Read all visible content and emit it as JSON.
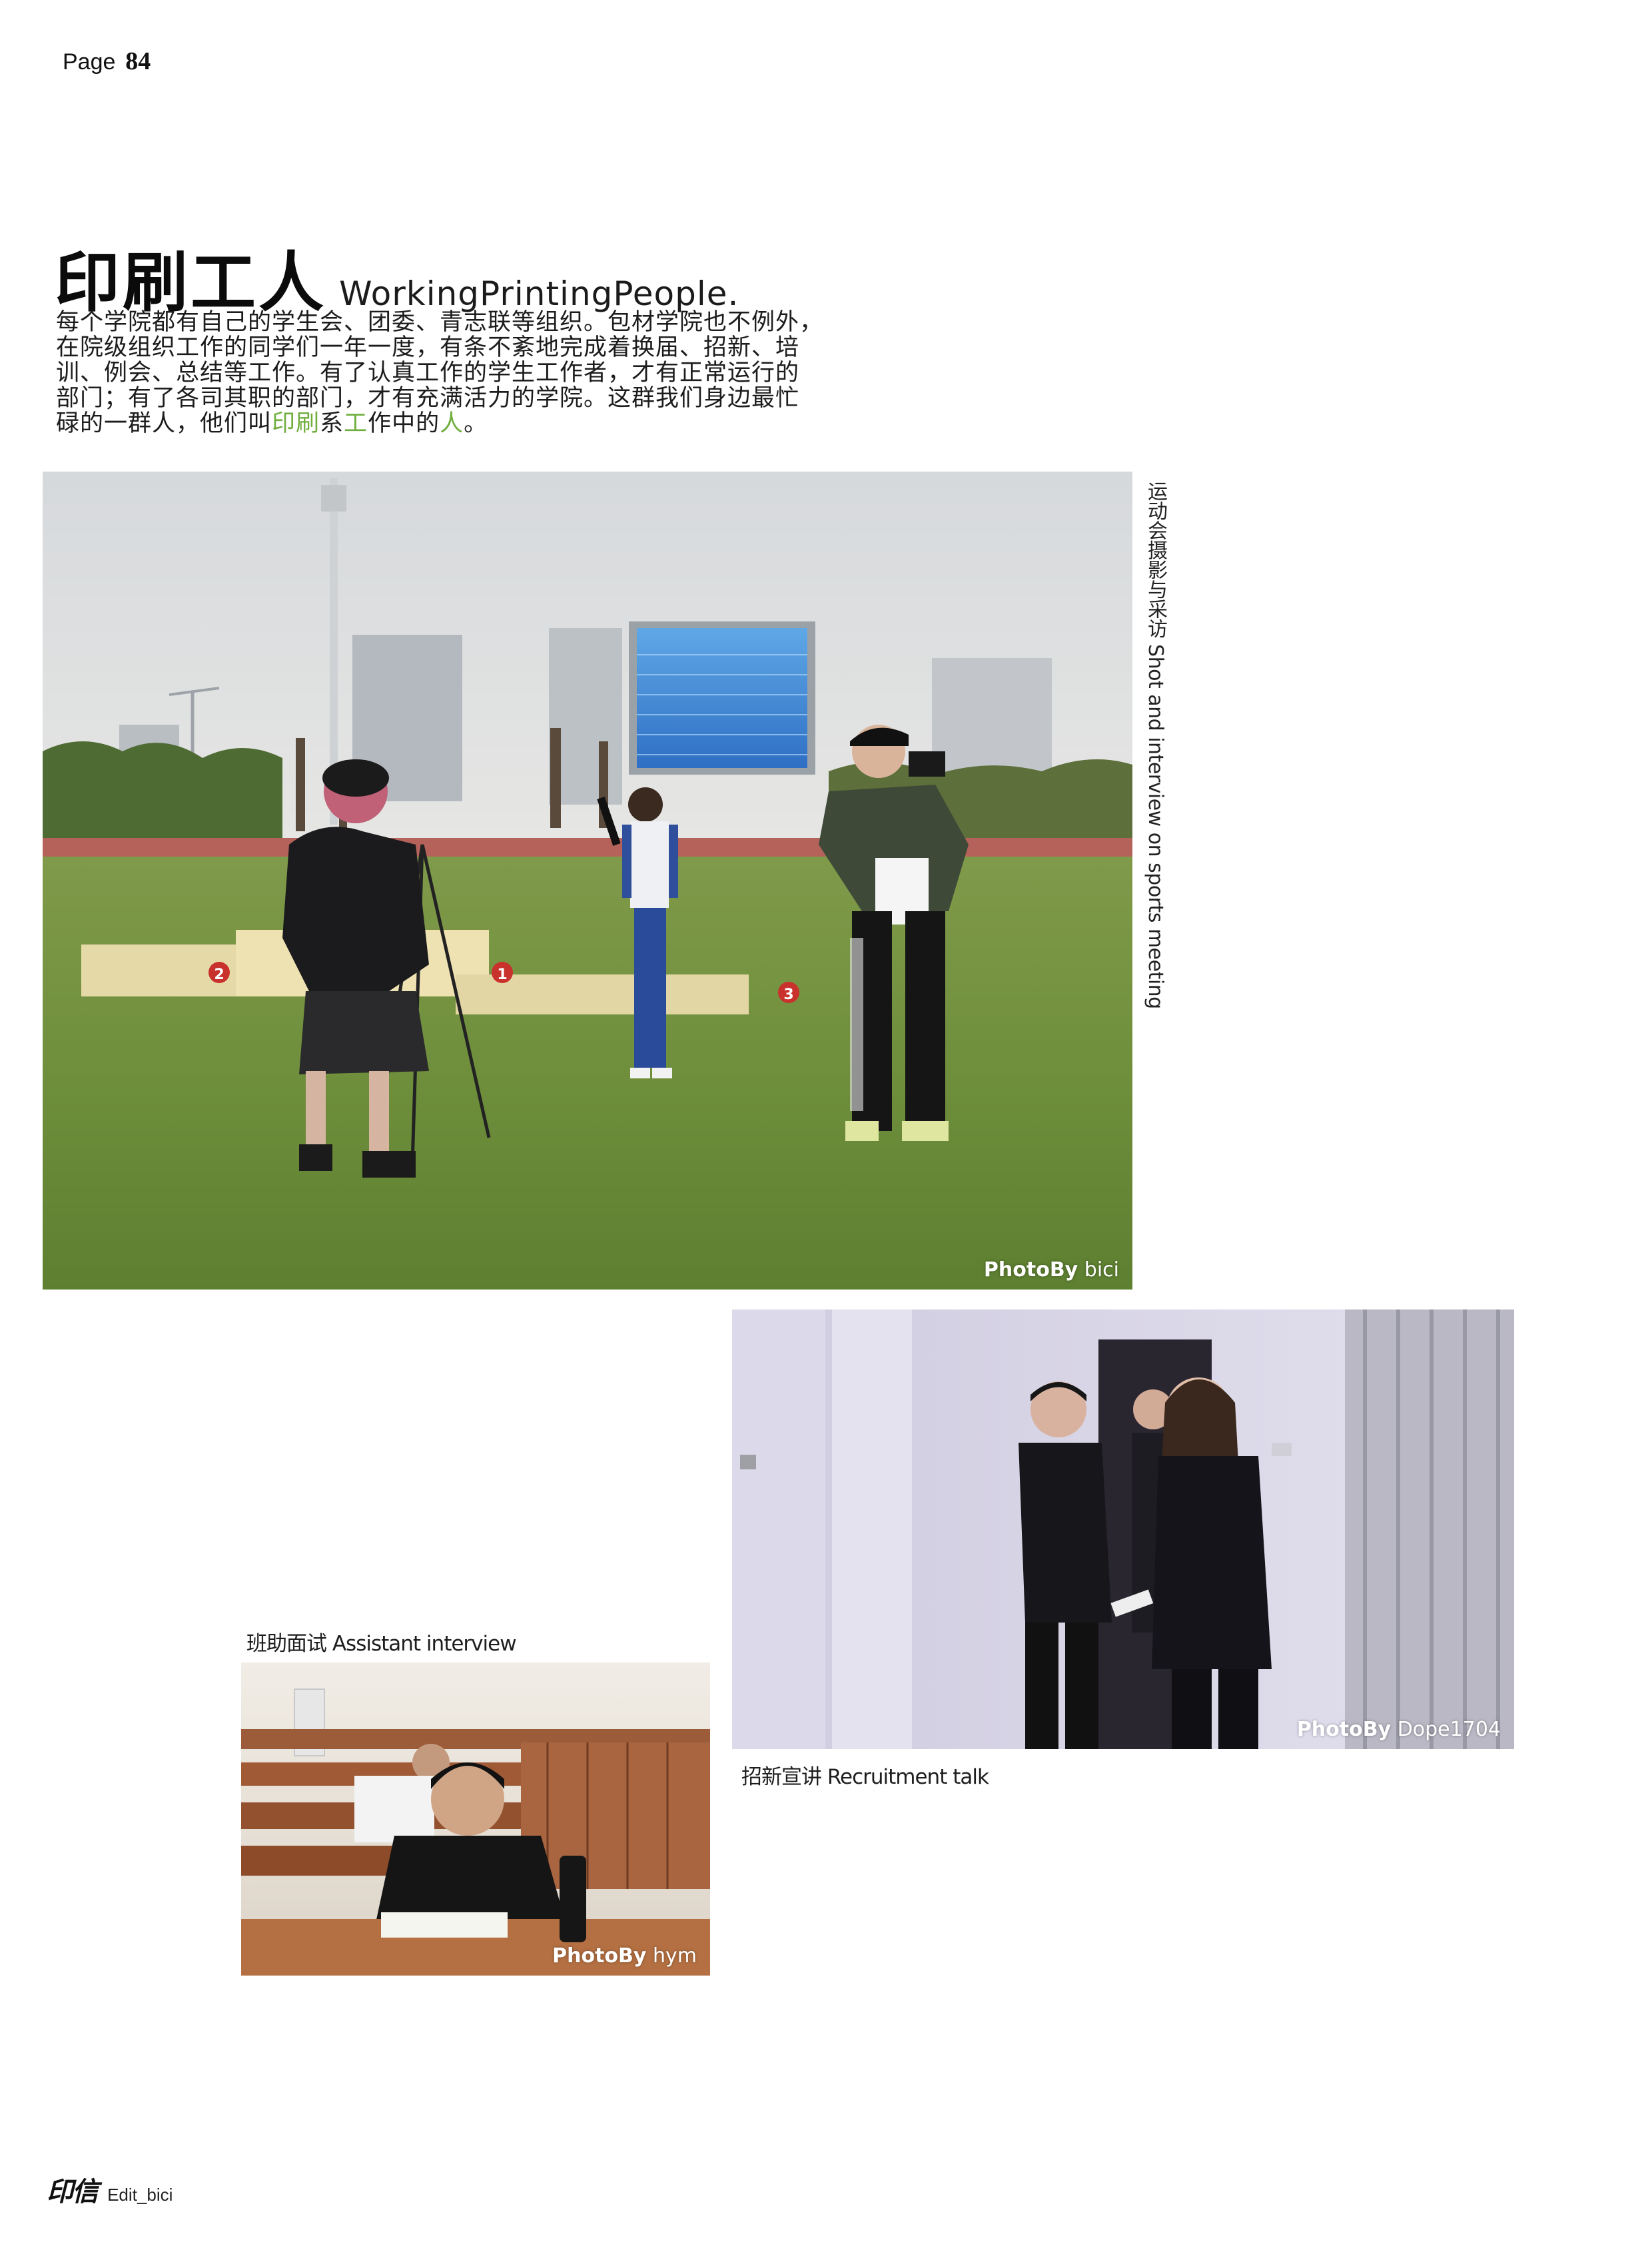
{
  "page": {
    "label": "Page",
    "number": "84"
  },
  "heading": {
    "title_cn": "印刷工人",
    "title_en": "WorkingPrintingPeople."
  },
  "intro": {
    "line1": "每个学院都有自己的学生会、团委、青志联等组织。包材学院也不例外，",
    "line2": "在院级组织工作的同学们一年一度，有条不紊地完成着换届、招新、培",
    "line3": "训、例会、总结等工作。有了认真工作的学生工作者，才有正常运行的",
    "line4": "部门；有了各司其职的部门，才有充满活力的学院。这群我们身边最忙",
    "line5_a": "碌的一群人，他们叫",
    "line5_h1": "印刷",
    "line5_b": "系",
    "line5_h2": "工",
    "line5_c": "作中的",
    "line5_h3": "人",
    "line5_d": "。"
  },
  "photos": {
    "sports": {
      "caption": "运动会摄影与采访 Shot and interview on sports meeting",
      "credit_label": "PhotoBy",
      "credit_name": "bici"
    },
    "recruit": {
      "caption": "招新宣讲 Recruitment talk",
      "credit_label": "PhotoBy",
      "credit_name": "Dope1704"
    },
    "interview": {
      "caption": "班助面试 Assistant interview",
      "credit_label": "PhotoBy",
      "credit_name": "hym"
    }
  },
  "scoreboard_marks": {
    "first": "1",
    "second": "2",
    "third": "3"
  },
  "footer": {
    "logo": "印信",
    "edit": "Edit_bici"
  },
  "colors": {
    "highlight": "#6fae3c",
    "text": "#1c1c1c",
    "background": "#ffffff"
  }
}
